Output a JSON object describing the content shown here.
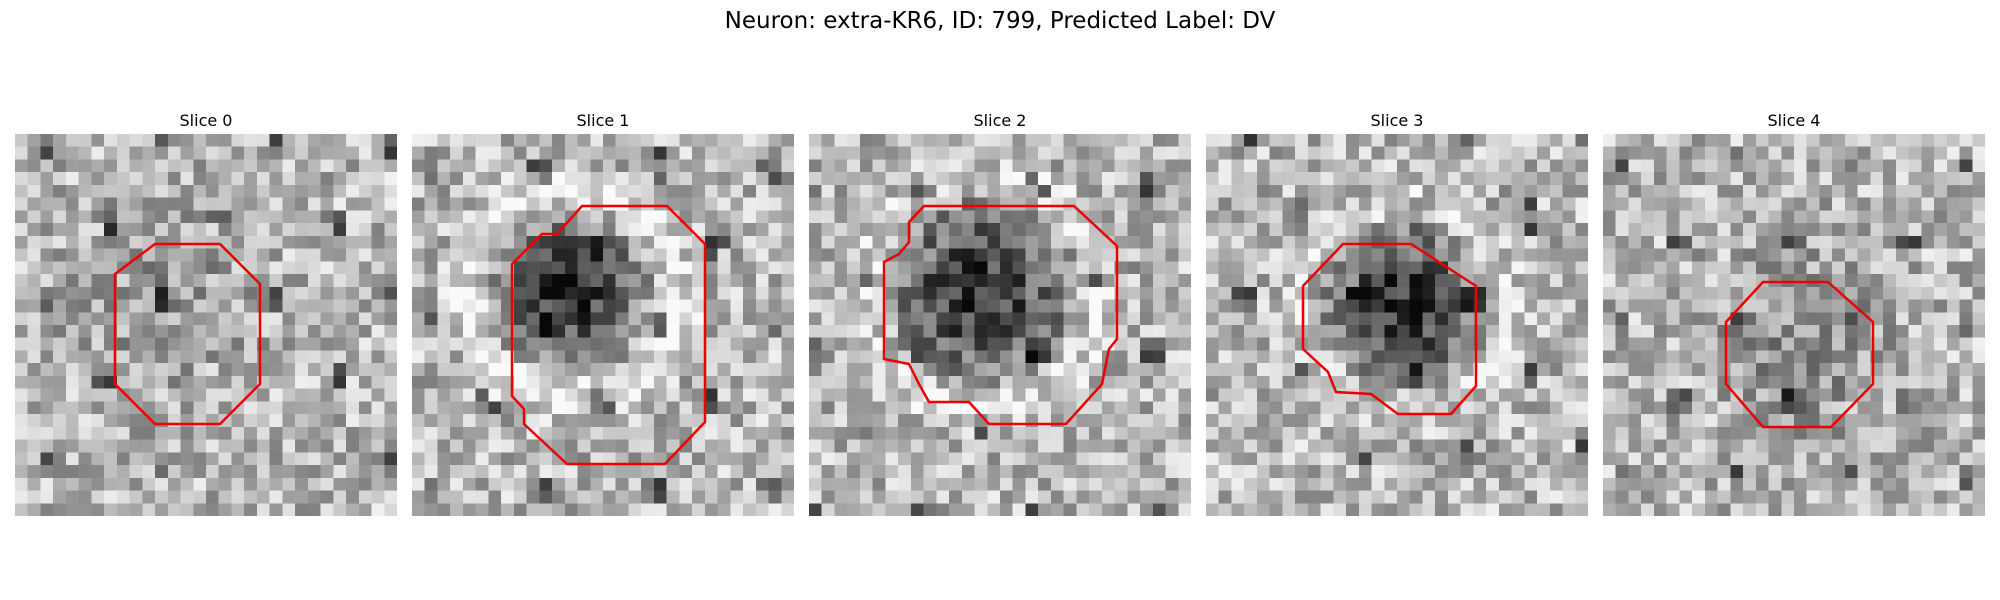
{
  "figure": {
    "title": "Neuron: extra-KR6, ID: 799, Predicted Label: DV",
    "overlay_color": "#ee0000"
  },
  "slices": [
    {
      "title": "Slice 0"
    },
    {
      "title": "Slice 1"
    },
    {
      "title": "Slice 2"
    },
    {
      "title": "Slice 3"
    },
    {
      "title": "Slice 4"
    }
  ]
}
